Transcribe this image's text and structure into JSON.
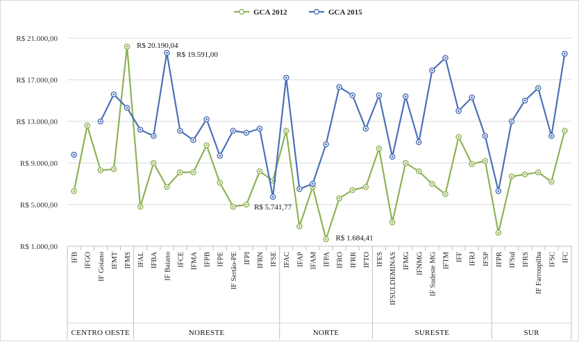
{
  "chart_data": {
    "type": "line",
    "categories": [
      "IFB",
      "IFGO",
      "IF Goiano",
      "IFMT",
      "IFMS",
      "IFAL",
      "IFBA",
      "IF Baiano",
      "IFCE",
      "IFMA",
      "IFPB",
      "IFPE",
      "IF Sertão-PE",
      "IFPI",
      "IFRN",
      "IFSE",
      "IFAC",
      "IFAP",
      "IFAM",
      "IFPA",
      "IFRO",
      "IFRR",
      "IFTO",
      "IFES",
      "IFSULDEMINAS",
      "IFMG",
      "IFNMG",
      "IF Sudeste MG",
      "IFTM",
      "IFF",
      "IFRJ",
      "IFSP",
      "IFPR",
      "IFSul",
      "IFRS",
      "IF Farroupilha",
      "IFSC",
      "IFC"
    ],
    "groups": [
      {
        "name": "CENTRO OESTE",
        "start": 0,
        "end": 4
      },
      {
        "name": "NORESTE",
        "start": 5,
        "end": 15
      },
      {
        "name": "NORTE",
        "start": 16,
        "end": 22
      },
      {
        "name": "SURESTE",
        "start": 23,
        "end": 31
      },
      {
        "name": "SUR",
        "start": 32,
        "end": 37
      }
    ],
    "series": [
      {
        "name": "GCA 2012",
        "color": "#8db255",
        "values": [
          6300,
          12600,
          8300,
          8400,
          20190.04,
          4800,
          9000,
          6700,
          8100,
          8100,
          10700,
          7100,
          4800,
          5000,
          8200,
          7300,
          12100,
          2900,
          6700,
          1684.41,
          5600,
          6400,
          6700,
          10400,
          3300,
          9000,
          8200,
          7000,
          6000,
          11500,
          8900,
          9200,
          2300,
          7700,
          7900,
          8100,
          7200,
          12100
        ]
      },
      {
        "name": "GCA 2015",
        "color": "#4a70b5",
        "values": [
          9800,
          null,
          13000,
          15600,
          14300,
          12200,
          11600,
          19591.0,
          12100,
          11200,
          13200,
          9700,
          12100,
          11900,
          12300,
          5741.77,
          17200,
          6500,
          7000,
          10800,
          16300,
          15500,
          12300,
          15500,
          9600,
          15400,
          11000,
          17900,
          19100,
          14000,
          15300,
          11600,
          6300,
          13000,
          15000,
          16200,
          11600,
          19500
        ]
      }
    ],
    "ylim": [
      1000,
      21000
    ],
    "yticks": [
      "R$ 1.000,00",
      "R$ 5.000,00",
      "R$ 9.000,00",
      "R$ 13.000,00",
      "R$ 17.000,00",
      "R$ 21.000,00"
    ],
    "ytick_values": [
      1000,
      5000,
      9000,
      13000,
      17000,
      21000
    ],
    "annotations": [
      {
        "text": "R$ 20.190,04",
        "series": 0,
        "index": 4
      },
      {
        "text": "R$ 19.591,00",
        "series": 1,
        "index": 7
      },
      {
        "text": "R$ 5.741,77",
        "series": 1,
        "index": 15
      },
      {
        "text": "R$ 1.684,41",
        "series": 0,
        "index": 19
      }
    ],
    "legend": {
      "position": "top"
    },
    "grid": true,
    "xlabel": "",
    "ylabel": "",
    "title": ""
  }
}
